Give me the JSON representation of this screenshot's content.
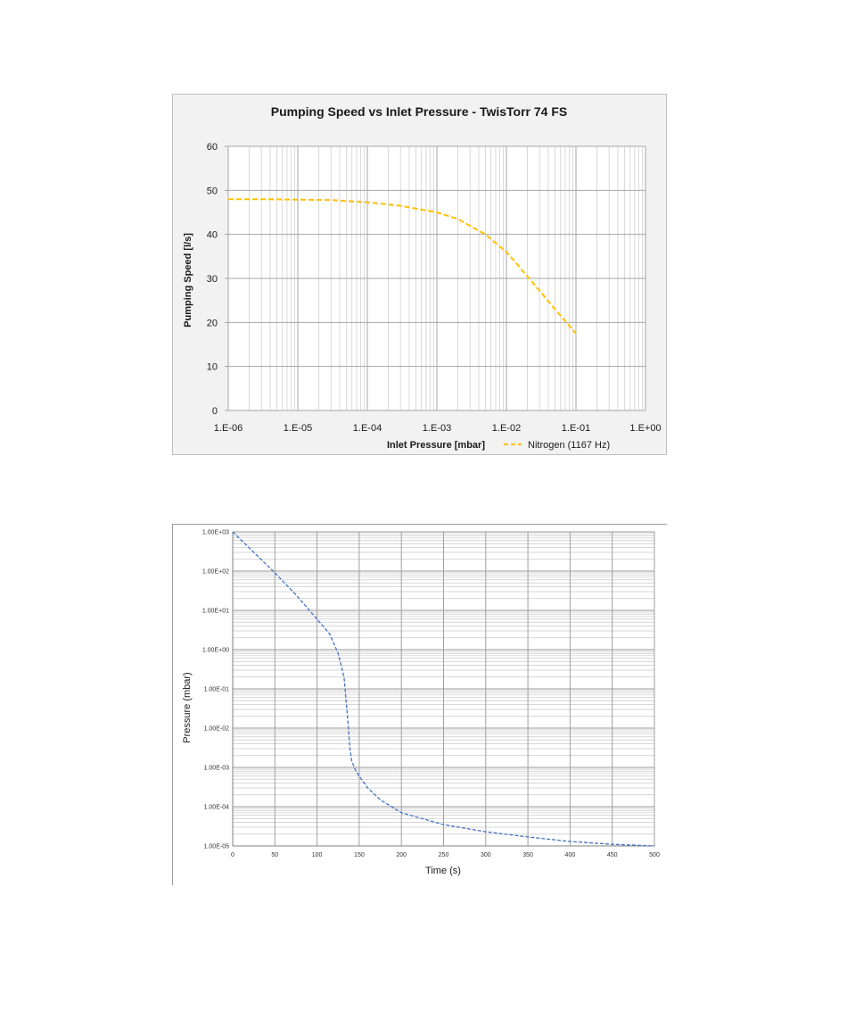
{
  "chart_data": [
    {
      "type": "line",
      "title": "Pumping Speed vs Inlet Pressure - TwisTorr 74 FS",
      "xlabel": "Inlet Pressure [mbar]",
      "ylabel": "Pumping Speed [l/s]",
      "x_scale": "log",
      "xlim": [
        1e-06,
        1
      ],
      "ylim": [
        0,
        60
      ],
      "x_tick_labels": [
        "1.E-06",
        "1.E-05",
        "1.E-04",
        "1.E-03",
        "1.E-02",
        "1.E-01",
        "1.E+00"
      ],
      "y_tick_labels": [
        "0",
        "10",
        "20",
        "30",
        "40",
        "50",
        "60"
      ],
      "grid": true,
      "legend_position": "bottom-right",
      "series": [
        {
          "name": "Nitrogen (1167 Hz)",
          "color": "#ffc000",
          "line_style": "dashed",
          "x": [
            1e-06,
            3e-06,
            1e-05,
            3e-05,
            0.0001,
            0.0003,
            0.001,
            0.002,
            0.005,
            0.01,
            0.02,
            0.05,
            0.1
          ],
          "y": [
            48,
            48,
            47.9,
            47.8,
            47.3,
            46.5,
            45,
            43.5,
            40,
            36,
            30.5,
            23,
            17.5
          ]
        }
      ]
    },
    {
      "type": "line",
      "title": "",
      "xlabel": "Time (s)",
      "ylabel": "Pressure (mbar)",
      "y_scale": "log",
      "xlim": [
        0,
        500
      ],
      "ylim": [
        1e-05,
        1000
      ],
      "x_tick_labels": [
        "0",
        "50",
        "100",
        "150",
        "200",
        "250",
        "300",
        "350",
        "400",
        "450",
        "500"
      ],
      "y_tick_labels": [
        "1.00E-05",
        "1.00E-04",
        "1.00E-03",
        "1.00E-02",
        "1.00E-01",
        "1.00E+00",
        "1.00E+01",
        "1.00E+02",
        "1.00E+03"
      ],
      "grid": true,
      "series": [
        {
          "color": "#4472c4",
          "line_style": "dashed",
          "x": [
            0,
            25,
            50,
            75,
            100,
            115,
            125,
            132,
            136,
            139,
            141,
            145,
            150,
            160,
            175,
            200,
            250,
            300,
            350,
            400,
            450,
            500
          ],
          "y": [
            1000,
            300,
            90,
            25,
            6,
            2.5,
            0.8,
            0.2,
            0.02,
            0.003,
            0.0015,
            0.0009,
            0.0006,
            0.0003,
            0.00015,
            7e-05,
            3.5e-05,
            2.3e-05,
            1.7e-05,
            1.3e-05,
            1.1e-05,
            1e-05
          ]
        }
      ]
    }
  ]
}
